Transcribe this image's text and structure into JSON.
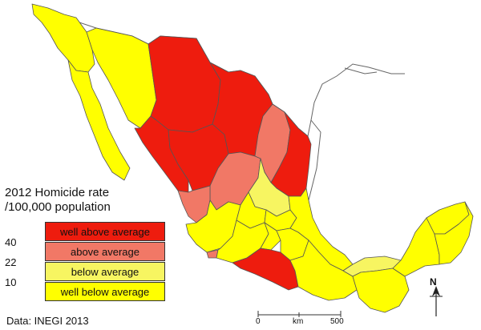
{
  "legend": {
    "title_line1": "2012 Homicide rate",
    "title_line2": "/100,000 population",
    "breaks": [
      "40",
      "22",
      "10"
    ],
    "classes": [
      {
        "label": "well above average",
        "color": "#ee1c0e"
      },
      {
        "label": "above average",
        "color": "#f17866"
      },
      {
        "label": "below average",
        "color": "#f7f561"
      },
      {
        "label": "well below average",
        "color": "#ffff00"
      }
    ]
  },
  "source": "Data: INEGI 2013",
  "scalebar": {
    "start": "0",
    "unit": "km",
    "end": "500"
  },
  "north": "N",
  "colors": {
    "very_high": "#ee1c0e",
    "high": "#f17866",
    "low": "#f7f561",
    "very_low": "#ffff00",
    "border": "#555555"
  }
}
